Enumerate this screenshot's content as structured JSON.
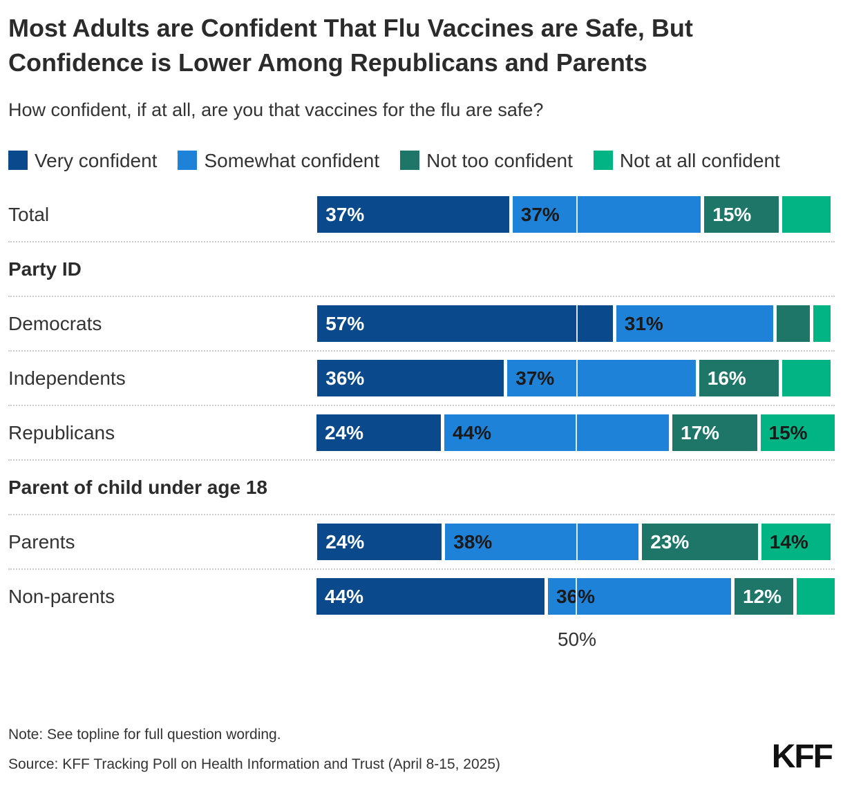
{
  "title": "Most Adults are Confident That Flu Vaccines are Safe, But Confidence is Lower Among Republicans and Parents",
  "subtitle": "How confident, if at all, are you that vaccines for the flu are safe?",
  "chart_data": {
    "type": "bar",
    "variant": "horizontal-stacked",
    "series": [
      "Very confident",
      "Somewhat confident",
      "Not too confident",
      "Not at all confident"
    ],
    "colors": [
      "#0A4A8C",
      "#1E82D9",
      "#1E7668",
      "#00B583"
    ],
    "value_label_colors": [
      "#ffffff",
      "#1a1a1a",
      "#ffffff",
      "#1a1a1a"
    ],
    "rows": [
      {
        "type": "bar",
        "label": "Total",
        "values": [
          37,
          37,
          15,
          10
        ]
      },
      {
        "type": "section",
        "label": "Party ID"
      },
      {
        "type": "bar",
        "label": "Democrats",
        "values": [
          57,
          31,
          7,
          4
        ]
      },
      {
        "type": "bar",
        "label": "Independents",
        "values": [
          36,
          37,
          16,
          10
        ]
      },
      {
        "type": "bar",
        "label": "Republicans",
        "values": [
          24,
          44,
          17,
          15
        ]
      },
      {
        "type": "section",
        "label": "Parent of child under age 18"
      },
      {
        "type": "bar",
        "label": "Parents",
        "values": [
          24,
          38,
          23,
          14
        ]
      },
      {
        "type": "bar",
        "label": "Non-parents",
        "values": [
          44,
          36,
          12,
          8
        ]
      }
    ],
    "xlim": [
      0,
      100
    ],
    "gridline_value": 50,
    "x_tick_label": "50%",
    "value_label_suffix": "%",
    "value_label_min": 12,
    "legend_position": "top",
    "grid": "single-50pct-line"
  },
  "footer": {
    "note": "Note: See topline for full question wording.",
    "source": "Source: KFF Tracking Poll on Health Information and Trust (April 8-15, 2025)",
    "logo_text": "KFF"
  }
}
